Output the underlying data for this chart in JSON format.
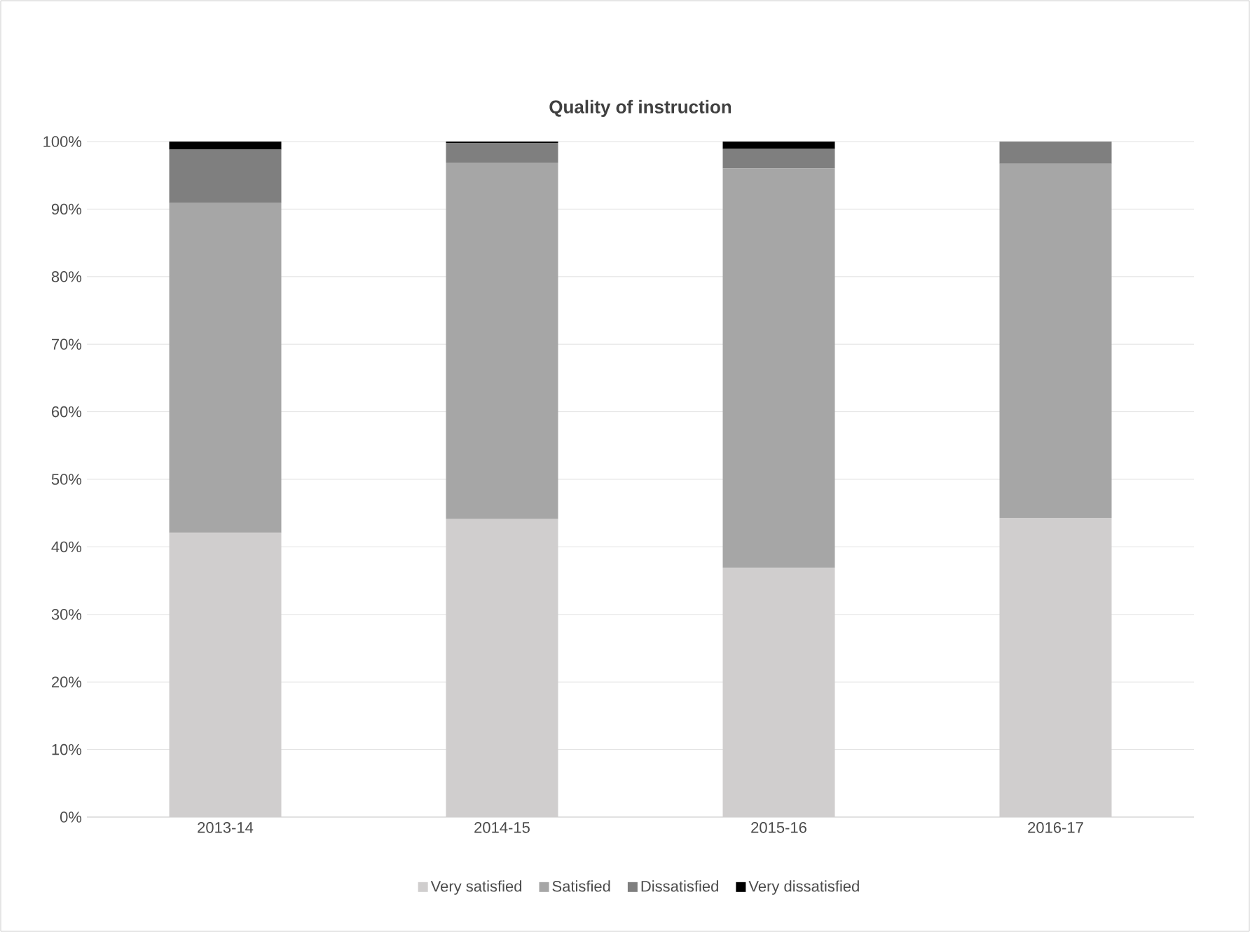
{
  "chart_data": {
    "type": "bar",
    "stacked": true,
    "title": "Quality of instruction",
    "categories": [
      "2013-14",
      "2014-15",
      "2015-16",
      "2016-17"
    ],
    "series": [
      {
        "name": "Very satisfied",
        "color": "#d0cece",
        "values": [
          42.1,
          44.1,
          36.9,
          44.3
        ]
      },
      {
        "name": "Satisfied",
        "color": "#a6a6a6",
        "values": [
          48.8,
          52.8,
          59.1,
          52.4
        ]
      },
      {
        "name": "Dissatisfied",
        "color": "#7f7f7f",
        "values": [
          7.9,
          2.9,
          2.9,
          3.3
        ]
      },
      {
        "name": "Very dissatisfied",
        "color": "#000000",
        "values": [
          1.2,
          0.2,
          1.1,
          0
        ]
      }
    ],
    "ylim": [
      0,
      100
    ],
    "yticks": [
      {
        "value": 0,
        "label": "0%"
      },
      {
        "value": 10,
        "label": "10%"
      },
      {
        "value": 20,
        "label": "20%"
      },
      {
        "value": 30,
        "label": "30%"
      },
      {
        "value": 40,
        "label": "40%"
      },
      {
        "value": 50,
        "label": "50%"
      },
      {
        "value": 60,
        "label": "60%"
      },
      {
        "value": 70,
        "label": "70%"
      },
      {
        "value": 80,
        "label": "80%"
      },
      {
        "value": 90,
        "label": "90%"
      },
      {
        "value": 100,
        "label": "100%"
      }
    ],
    "grid": "y",
    "legend": "bottom"
  }
}
